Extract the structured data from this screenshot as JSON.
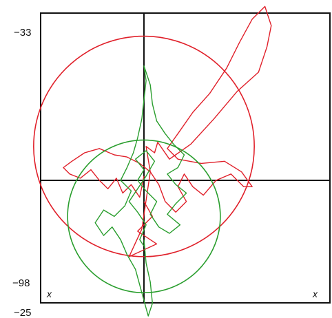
{
  "chart_data": {
    "type": "line",
    "title": "",
    "xlabel": "x",
    "ylabel": "",
    "y_tick_labels": [
      "−33",
      "−98"
    ],
    "x_tick_labels": [
      "−25"
    ],
    "x_axis_labels": [
      "x",
      "x"
    ],
    "grid": true,
    "legend": "none",
    "series": [
      {
        "color": "#e0202a",
        "points": [
          [
            0.0,
            -2.0
          ],
          [
            0.8,
            -3.4
          ],
          [
            -0.6,
            -4.8
          ],
          [
            1.2,
            -6.0
          ],
          [
            -1.4,
            -7.2
          ],
          [
            -0.2,
            -4.6
          ],
          [
            0.6,
            0.8
          ],
          [
            0.2,
            3.2
          ],
          [
            1.0,
            2.6
          ],
          [
            1.3,
            3.6
          ],
          [
            2.4,
            2.0
          ],
          [
            4.4,
            3.4
          ],
          [
            6.6,
            5.8
          ],
          [
            8.8,
            8.4
          ],
          [
            10.8,
            10.2
          ],
          [
            11.6,
            12.6
          ],
          [
            12.0,
            14.6
          ],
          [
            11.4,
            16.4
          ],
          [
            10.2,
            15.2
          ],
          [
            9.0,
            13.0
          ],
          [
            7.8,
            10.6
          ],
          [
            6.2,
            8.2
          ],
          [
            4.6,
            6.4
          ],
          [
            3.2,
            4.4
          ],
          [
            2.2,
            3.0
          ],
          [
            3.2,
            2.0
          ],
          [
            5.4,
            1.6
          ],
          [
            7.6,
            1.8
          ],
          [
            9.2,
            0.8
          ],
          [
            10.2,
            -0.6
          ],
          [
            9.4,
            -0.6
          ],
          [
            8.2,
            0.6
          ],
          [
            6.8,
            0.0
          ],
          [
            5.6,
            -1.4
          ],
          [
            4.6,
            -0.6
          ],
          [
            3.8,
            0.6
          ],
          [
            3.2,
            -0.6
          ],
          [
            4.0,
            -2.0
          ],
          [
            3.0,
            -3.0
          ],
          [
            2.0,
            -2.0
          ],
          [
            1.4,
            -0.4
          ],
          [
            0.6,
            0.8
          ],
          [
            -0.4,
            1.6
          ],
          [
            -1.6,
            2.2
          ],
          [
            -2.8,
            2.4
          ],
          [
            -4.2,
            3.0
          ],
          [
            -5.6,
            2.6
          ],
          [
            -6.8,
            1.8
          ],
          [
            -7.6,
            1.2
          ],
          [
            -7.0,
            0.6
          ],
          [
            -6.0,
            0.2
          ],
          [
            -5.0,
            1.0
          ],
          [
            -4.2,
            0.0
          ],
          [
            -3.4,
            -0.8
          ],
          [
            -2.6,
            0.2
          ],
          [
            -2.0,
            -1.2
          ],
          [
            -1.2,
            -0.4
          ],
          [
            -0.4,
            -1.6
          ],
          [
            0.0,
            0.4
          ]
        ],
        "reference_circle": {
          "cx": 0.0,
          "cy": 3.2,
          "r": 10.4
        }
      },
      {
        "color": "#2a9e2e",
        "points": [
          [
            0.0,
            -5.6
          ],
          [
            0.2,
            -7.8
          ],
          [
            0.6,
            -9.6
          ],
          [
            0.8,
            -11.6
          ],
          [
            0.4,
            -12.8
          ],
          [
            -0.2,
            -10.6
          ],
          [
            -0.8,
            -8.4
          ],
          [
            -1.6,
            -7.0
          ],
          [
            -2.2,
            -5.6
          ],
          [
            -3.0,
            -4.4
          ],
          [
            -3.8,
            -5.2
          ],
          [
            -4.6,
            -4.0
          ],
          [
            -3.8,
            -2.8
          ],
          [
            -2.8,
            -3.4
          ],
          [
            -1.8,
            -2.4
          ],
          [
            -1.2,
            -1.0
          ],
          [
            -2.2,
            0.0
          ],
          [
            -1.6,
            1.2
          ],
          [
            -1.0,
            2.6
          ],
          [
            -0.6,
            4.0
          ],
          [
            -0.2,
            5.8
          ],
          [
            0.0,
            7.6
          ],
          [
            0.2,
            9.4
          ],
          [
            0.0,
            10.8
          ],
          [
            0.6,
            9.0
          ],
          [
            0.8,
            7.2
          ],
          [
            1.2,
            5.6
          ],
          [
            2.0,
            4.4
          ],
          [
            2.8,
            3.4
          ],
          [
            3.8,
            2.4
          ],
          [
            3.2,
            1.2
          ],
          [
            2.2,
            0.6
          ],
          [
            3.0,
            -0.4
          ],
          [
            4.0,
            -1.2
          ],
          [
            3.0,
            -2.2
          ],
          [
            2.2,
            -3.2
          ],
          [
            3.4,
            -4.2
          ],
          [
            2.4,
            -5.0
          ],
          [
            1.4,
            -4.4
          ],
          [
            0.6,
            -3.2
          ],
          [
            1.2,
            -2.0
          ],
          [
            0.2,
            -1.0
          ],
          [
            -0.6,
            0.0
          ],
          [
            0.0,
            1.0
          ],
          [
            -0.8,
            2.0
          ],
          [
            0.2,
            2.8
          ],
          [
            1.0,
            1.8
          ],
          [
            0.2,
            0.4
          ],
          [
            -0.6,
            -0.8
          ],
          [
            -1.4,
            -2.0
          ],
          [
            -0.6,
            -3.0
          ],
          [
            0.2,
            -4.2
          ],
          [
            -0.4,
            -5.6
          ],
          [
            0.0,
            -6.2
          ]
        ],
        "reference_circle": {
          "cx": 0.0,
          "cy": -3.4,
          "r": 7.2
        }
      }
    ]
  }
}
